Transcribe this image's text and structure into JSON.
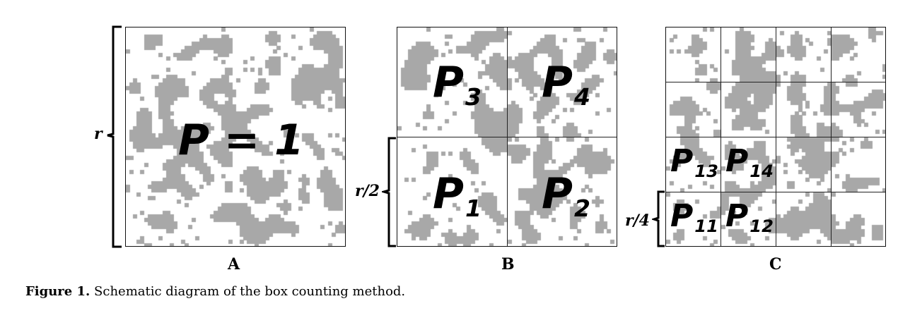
{
  "panels": {
    "a": {
      "letter": "A",
      "label_main": "P = 1",
      "scale": "r"
    },
    "b": {
      "letter": "B",
      "scale": "r/2",
      "cells": [
        {
          "p": "P",
          "sub": "3"
        },
        {
          "p": "P",
          "sub": "4"
        },
        {
          "p": "P",
          "sub": "1"
        },
        {
          "p": "P",
          "sub": "2"
        }
      ]
    },
    "c": {
      "letter": "C",
      "scale": "r/4",
      "cells": [
        {
          "p": "P",
          "sub": "13"
        },
        {
          "p": "P",
          "sub": "14"
        },
        {
          "p": "P",
          "sub": "11"
        },
        {
          "p": "P",
          "sub": "12"
        }
      ]
    }
  },
  "caption": {
    "figure_label": "Figure 1.",
    "text": "Schematic diagram of the box counting method."
  },
  "colors": {
    "fill": "#a8a8a8",
    "background": "#ffffff",
    "lines": "#222222"
  }
}
